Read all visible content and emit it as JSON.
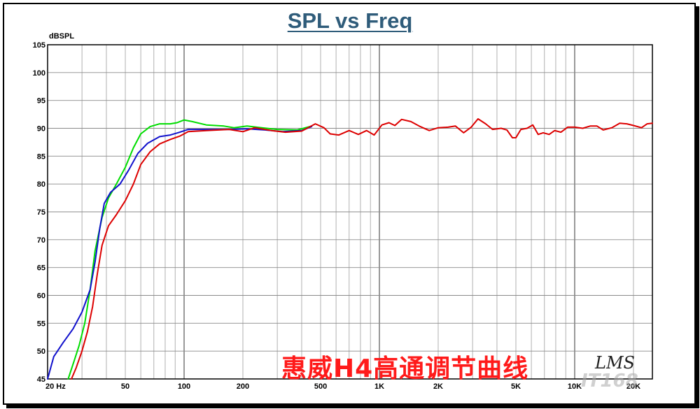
{
  "chart_data": {
    "type": "line",
    "title": "SPL vs Freq",
    "ylabel": "dBSPL",
    "xlabel": "",
    "x_scale": "log",
    "xlim": [
      20,
      25000
    ],
    "ylim": [
      45,
      105
    ],
    "grid": true,
    "y_ticks": [
      105,
      100,
      95,
      90,
      85,
      80,
      75,
      70,
      65,
      60,
      55,
      50,
      45
    ],
    "x_tick_labels": [
      {
        "f": 20,
        "label": "20  Hz"
      },
      {
        "f": 50,
        "label": "50"
      },
      {
        "f": 100,
        "label": "100"
      },
      {
        "f": 200,
        "label": "200"
      },
      {
        "f": 500,
        "label": "500"
      },
      {
        "f": 1000,
        "label": "1K"
      },
      {
        "f": 2000,
        "label": "2K"
      },
      {
        "f": 5000,
        "label": "5K"
      },
      {
        "f": 10000,
        "label": "10K"
      },
      {
        "f": 20000,
        "label": "20K"
      }
    ],
    "series": [
      {
        "color": "#00dd00",
        "points": [
          [
            25.5,
            45
          ],
          [
            27.5,
            48.5
          ],
          [
            29,
            51
          ],
          [
            31,
            55
          ],
          [
            33,
            61
          ],
          [
            35,
            68
          ],
          [
            38,
            74
          ],
          [
            41,
            77.5
          ],
          [
            45,
            80
          ],
          [
            50,
            83
          ],
          [
            55,
            86.5
          ],
          [
            60,
            89
          ],
          [
            67,
            90.3
          ],
          [
            75,
            90.8
          ],
          [
            85,
            90.8
          ],
          [
            92,
            91
          ],
          [
            100,
            91.5
          ],
          [
            110,
            91.2
          ],
          [
            130,
            90.6
          ],
          [
            160,
            90.4
          ],
          [
            180,
            90.1
          ],
          [
            210,
            90.4
          ],
          [
            250,
            90.1
          ],
          [
            300,
            89.8
          ],
          [
            380,
            89.7
          ],
          [
            450,
            90.4
          ]
        ]
      },
      {
        "color": "#1010cc",
        "points": [
          [
            20,
            45
          ],
          [
            21.5,
            49
          ],
          [
            24,
            51.5
          ],
          [
            27,
            54
          ],
          [
            30,
            57
          ],
          [
            33,
            61
          ],
          [
            35,
            66
          ],
          [
            37,
            72
          ],
          [
            39,
            76.5
          ],
          [
            42,
            78.5
          ],
          [
            47,
            80
          ],
          [
            52,
            82.5
          ],
          [
            58,
            85.5
          ],
          [
            65,
            87.3
          ],
          [
            75,
            88.5
          ],
          [
            85,
            88.8
          ],
          [
            95,
            89.3
          ],
          [
            105,
            89.8
          ],
          [
            130,
            89.8
          ],
          [
            170,
            89.8
          ],
          [
            210,
            89.9
          ],
          [
            260,
            89.7
          ],
          [
            320,
            89.4
          ],
          [
            400,
            89.6
          ],
          [
            450,
            90.3
          ]
        ]
      },
      {
        "color": "#dd0000",
        "points": [
          [
            26.5,
            45
          ],
          [
            28,
            47
          ],
          [
            30,
            50
          ],
          [
            32,
            53.5
          ],
          [
            34,
            58
          ],
          [
            36,
            64
          ],
          [
            38,
            69
          ],
          [
            41,
            72.5
          ],
          [
            45,
            74.5
          ],
          [
            50,
            77
          ],
          [
            55,
            80
          ],
          [
            60,
            83.5
          ],
          [
            67,
            85.8
          ],
          [
            75,
            87.2
          ],
          [
            85,
            88
          ],
          [
            95,
            88.6
          ],
          [
            105,
            89.4
          ],
          [
            130,
            89.6
          ],
          [
            170,
            89.8
          ],
          [
            200,
            89.4
          ],
          [
            230,
            90.1
          ],
          [
            280,
            89.6
          ],
          [
            330,
            89.3
          ],
          [
            400,
            89.5
          ],
          [
            470,
            90.8
          ],
          [
            520,
            90.1
          ],
          [
            560,
            89
          ],
          [
            620,
            88.8
          ],
          [
            700,
            89.6
          ],
          [
            780,
            88.9
          ],
          [
            860,
            89.6
          ],
          [
            940,
            88.8
          ],
          [
            1030,
            90.6
          ],
          [
            1120,
            91
          ],
          [
            1200,
            90.5
          ],
          [
            1300,
            91.6
          ],
          [
            1450,
            91.2
          ],
          [
            1620,
            90.3
          ],
          [
            1800,
            89.6
          ],
          [
            2000,
            90.1
          ],
          [
            2250,
            90.2
          ],
          [
            2450,
            90.4
          ],
          [
            2700,
            89.2
          ],
          [
            2950,
            90.2
          ],
          [
            3200,
            91.7
          ],
          [
            3500,
            90.8
          ],
          [
            3800,
            89.8
          ],
          [
            4200,
            90
          ],
          [
            4500,
            89.7
          ],
          [
            4800,
            88.3
          ],
          [
            5000,
            88.3
          ],
          [
            5300,
            89.8
          ],
          [
            5700,
            90
          ],
          [
            6100,
            90.6
          ],
          [
            6500,
            88.9
          ],
          [
            6900,
            89.2
          ],
          [
            7400,
            88.9
          ],
          [
            7900,
            89.6
          ],
          [
            8500,
            89.3
          ],
          [
            9200,
            90.2
          ],
          [
            10000,
            90.2
          ],
          [
            11000,
            90
          ],
          [
            12000,
            90.4
          ],
          [
            13000,
            90.4
          ],
          [
            14000,
            89.7
          ],
          [
            15500,
            90.1
          ],
          [
            17000,
            90.9
          ],
          [
            18500,
            90.8
          ],
          [
            20000,
            90.5
          ],
          [
            22000,
            90.1
          ],
          [
            23500,
            90.8
          ],
          [
            25000,
            90.9
          ]
        ]
      }
    ],
    "annotations": [
      "惠威H4高通调节曲线",
      "LMS",
      "IT168"
    ]
  }
}
